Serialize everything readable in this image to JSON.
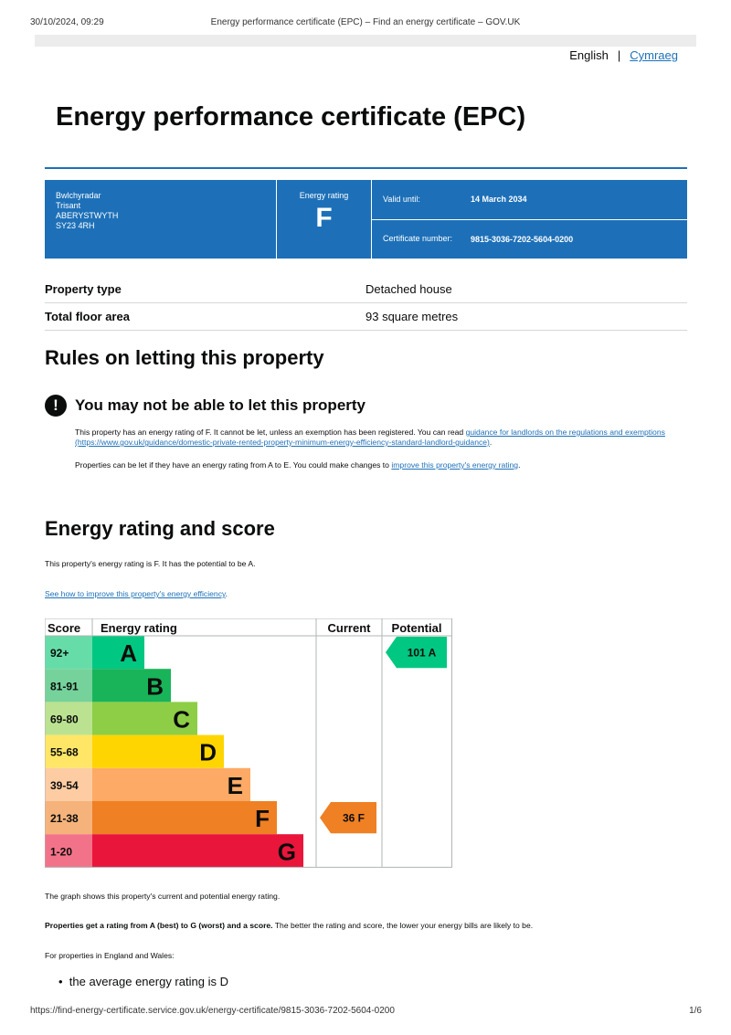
{
  "header": {
    "datetime": "30/10/2024, 09:29",
    "tab_title": "Energy performance certificate (EPC) – Find an energy certificate – GOV.UK"
  },
  "lang": {
    "english": "English",
    "separator": "|",
    "welsh": "Cymraeg"
  },
  "title": "Energy performance certificate (EPC)",
  "address": {
    "line1": "Bwlchyradar",
    "line2": "Trisant",
    "line3": "ABERYSTWYTH",
    "line4": "SY23 4RH"
  },
  "rating_box": {
    "label": "Energy rating",
    "letter": "F"
  },
  "valid": {
    "label": "Valid until:",
    "value": "14 March 2034"
  },
  "cert": {
    "label": "Certificate number:",
    "value": "9815-3036-7202-5604-0200"
  },
  "property": {
    "type_label": "Property type",
    "type_value": "Detached house",
    "area_label": "Total floor area",
    "area_value": "93 square metres"
  },
  "rules": {
    "heading": "Rules on letting this property",
    "warn_icon": "!",
    "warn_title": "You may not be able to let this property",
    "p1_text": "This property has an energy rating of F. It cannot be let, unless an exemption has been registered. You can read ",
    "p1_link": "guidance for landlords on the regulations and exemptions (https://www.gov.uk/guidance/domestic-private-rented-property-minimum-energy-efficiency-standard-landlord-guidance)",
    "p1_end": ".",
    "p2_text": "Properties can be let if they have an energy rating from A to E. You could make changes to ",
    "p2_link": "improve this property's energy rating",
    "p2_end": "."
  },
  "energy": {
    "heading": "Energy rating and score",
    "summary": "This property's energy rating is F. It has the potential to be A.",
    "improve_link": "See how to improve this property's energy efficiency",
    "improve_end": ".",
    "graph_note": "The graph shows this property's current and potential energy rating.",
    "ratings_bold": "Properties get a rating from A (best) to G (worst) and a score.",
    "ratings_rest": " The better the rating and score, the lower your energy bills are likely to be.",
    "region": "For properties in England and Wales:",
    "average": "the average energy rating is D"
  },
  "chart_data": {
    "type": "table",
    "headers": [
      "Score",
      "Energy rating",
      "Current",
      "Potential"
    ],
    "bands": [
      {
        "score": "92+",
        "letter": "A",
        "color": "#00c781",
        "score_bg": "#66dda9"
      },
      {
        "score": "81-91",
        "letter": "B",
        "color": "#19b459",
        "score_bg": "#75d29b"
      },
      {
        "score": "69-80",
        "letter": "C",
        "color": "#8dce46",
        "score_bg": "#bbe290"
      },
      {
        "score": "55-68",
        "letter": "D",
        "color": "#ffd500",
        "score_bg": "#ffe666"
      },
      {
        "score": "39-54",
        "letter": "E",
        "color": "#fcaa65",
        "score_bg": "#fdcca3"
      },
      {
        "score": "21-38",
        "letter": "F",
        "color": "#ef8023",
        "score_bg": "#f5b37b"
      },
      {
        "score": "1-20",
        "letter": "G",
        "color": "#e9153b",
        "score_bg": "#f27389"
      }
    ],
    "current": {
      "value": 36,
      "letter": "F",
      "label": "36  F",
      "band_index": 5,
      "color": "#ef8023"
    },
    "potential": {
      "value": 101,
      "letter": "A",
      "label": "101  A",
      "band_index": 0,
      "color": "#00c781"
    }
  },
  "footer": {
    "url": "https://find-energy-certificate.service.gov.uk/energy-certificate/9815-3036-7202-5604-0200",
    "page": "1/6"
  }
}
